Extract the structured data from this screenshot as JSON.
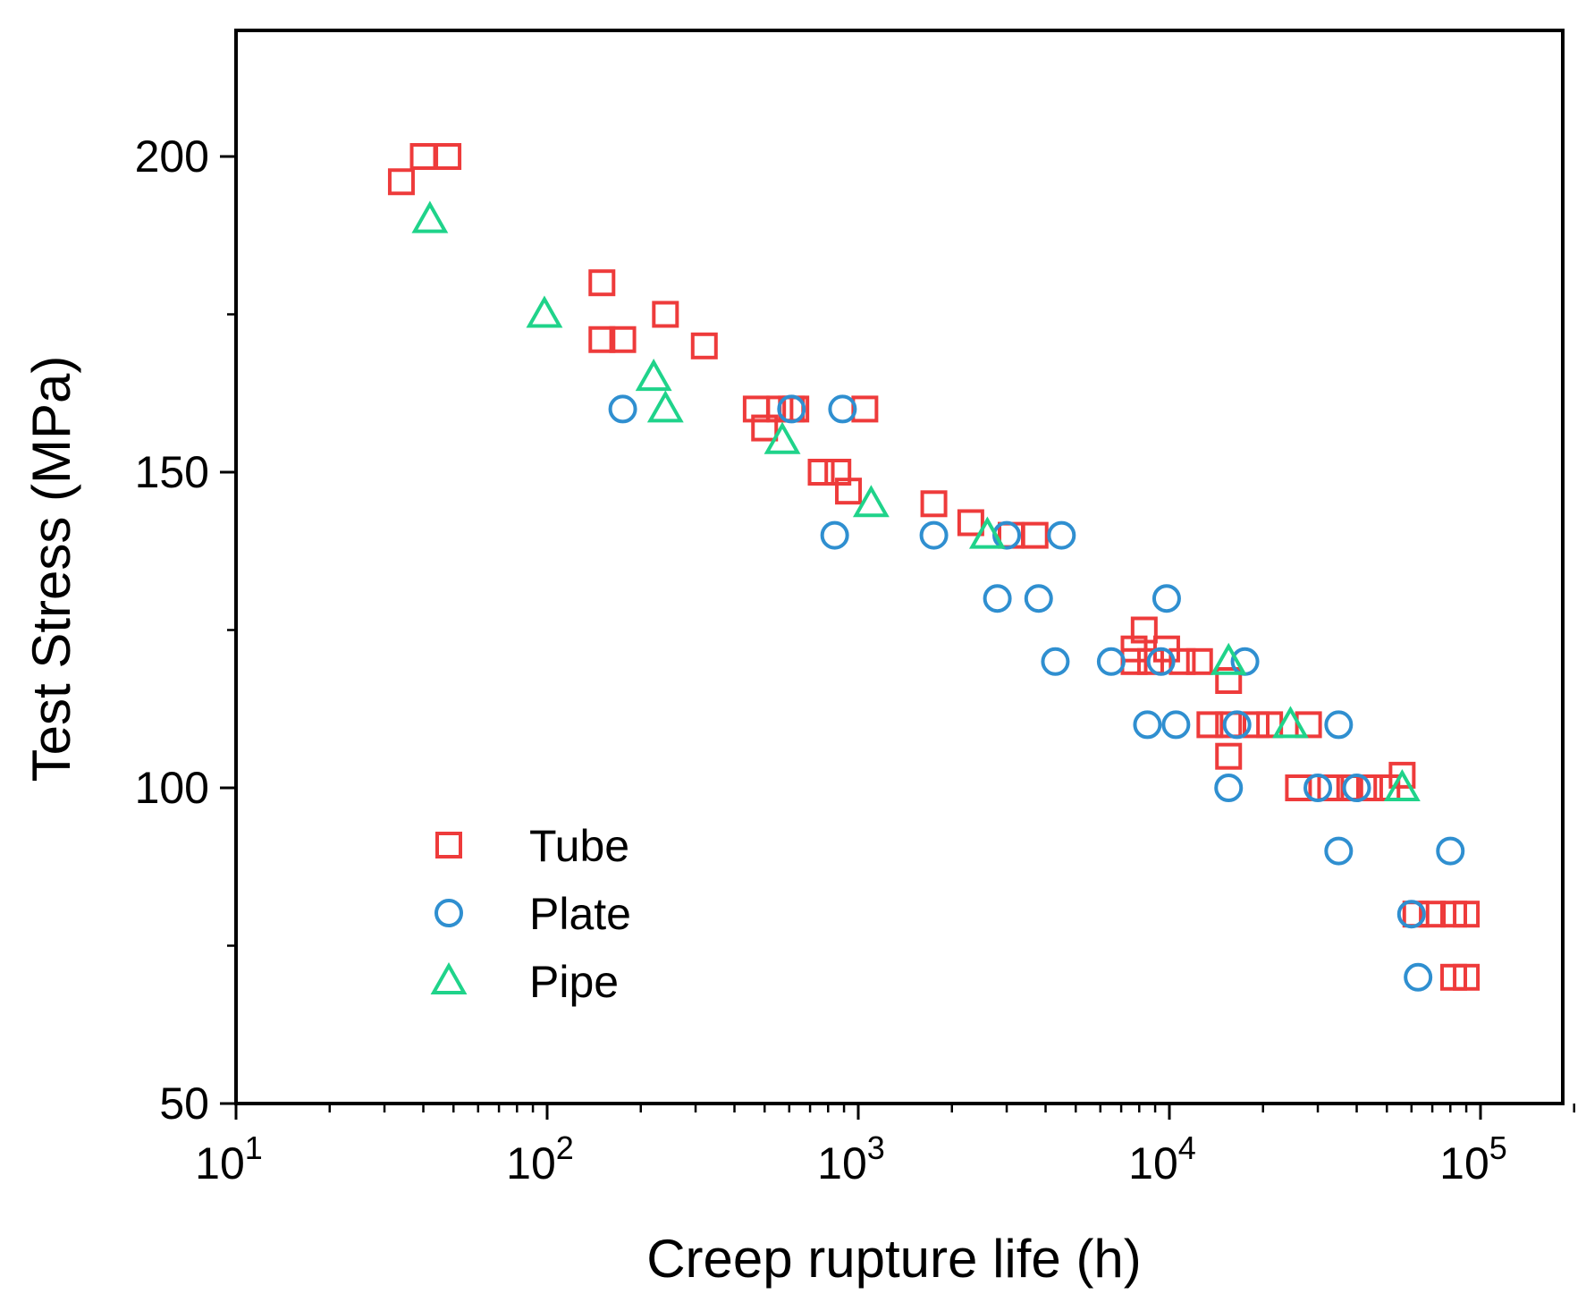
{
  "chart_data": {
    "type": "scatter",
    "title": "",
    "xlabel": "Creep rupture life (h)",
    "ylabel": "Test Stress (MPa)",
    "xscale": "log",
    "xlim": [
      10,
      200000
    ],
    "ylim": [
      50,
      220
    ],
    "grid": false,
    "legend_position": "bottom-left",
    "x_ticks": [
      {
        "base": "10",
        "exp": "1",
        "value": 10
      },
      {
        "base": "10",
        "exp": "2",
        "value": 100
      },
      {
        "base": "10",
        "exp": "3",
        "value": 1000
      },
      {
        "base": "10",
        "exp": "4",
        "value": 10000
      },
      {
        "base": "10",
        "exp": "5",
        "value": 100000
      }
    ],
    "y_ticks": [
      {
        "label": "50",
        "value": 50
      },
      {
        "label": "100",
        "value": 100
      },
      {
        "label": "150",
        "value": 150
      },
      {
        "label": "200",
        "value": 200
      }
    ],
    "series": [
      {
        "name": "Tube",
        "marker": "square",
        "color": "#ee3b3b",
        "points": [
          [
            34,
            196
          ],
          [
            40,
            200
          ],
          [
            48,
            200
          ],
          [
            150,
            180
          ],
          [
            150,
            171
          ],
          [
            175,
            171
          ],
          [
            240,
            175
          ],
          [
            320,
            170
          ],
          [
            470,
            160
          ],
          [
            500,
            157
          ],
          [
            560,
            160
          ],
          [
            610,
            160
          ],
          [
            630,
            160
          ],
          [
            1050,
            160
          ],
          [
            760,
            150
          ],
          [
            860,
            150
          ],
          [
            930,
            147
          ],
          [
            1750,
            145
          ],
          [
            2300,
            142
          ],
          [
            3100,
            140
          ],
          [
            3700,
            140
          ],
          [
            8300,
            125
          ],
          [
            7700,
            122
          ],
          [
            7700,
            120
          ],
          [
            9800,
            122
          ],
          [
            8700,
            120
          ],
          [
            11000,
            120
          ],
          [
            12500,
            120
          ],
          [
            15500,
            117
          ],
          [
            13500,
            110
          ],
          [
            15500,
            110
          ],
          [
            19000,
            110
          ],
          [
            21000,
            110
          ],
          [
            28000,
            110
          ],
          [
            15500,
            105
          ],
          [
            26000,
            100
          ],
          [
            33000,
            100
          ],
          [
            38000,
            100
          ],
          [
            44000,
            100
          ],
          [
            50000,
            100
          ],
          [
            56000,
            102
          ],
          [
            62000,
            80
          ],
          [
            70000,
            80
          ],
          [
            82000,
            80
          ],
          [
            90000,
            80
          ],
          [
            82000,
            70
          ],
          [
            90000,
            70
          ]
        ]
      },
      {
        "name": "Plate",
        "marker": "circle",
        "color": "#2f8fd0",
        "points": [
          [
            175,
            160
          ],
          [
            610,
            160
          ],
          [
            890,
            160
          ],
          [
            840,
            140
          ],
          [
            1750,
            140
          ],
          [
            3000,
            140
          ],
          [
            4500,
            140
          ],
          [
            2800,
            130
          ],
          [
            3800,
            130
          ],
          [
            9800,
            130
          ],
          [
            4300,
            120
          ],
          [
            6500,
            120
          ],
          [
            9400,
            120
          ],
          [
            17500,
            120
          ],
          [
            8500,
            110
          ],
          [
            10500,
            110
          ],
          [
            16500,
            110
          ],
          [
            35000,
            110
          ],
          [
            15500,
            100
          ],
          [
            30000,
            100
          ],
          [
            40000,
            100
          ],
          [
            35000,
            90
          ],
          [
            80000,
            90
          ],
          [
            60000,
            80
          ],
          [
            63000,
            70
          ]
        ]
      },
      {
        "name": "Pipe",
        "marker": "triangle",
        "color": "#1fd38a",
        "points": [
          [
            42,
            190
          ],
          [
            98,
            175
          ],
          [
            220,
            165
          ],
          [
            240,
            160
          ],
          [
            570,
            155
          ],
          [
            1100,
            145
          ],
          [
            2600,
            140
          ],
          [
            15500,
            120
          ],
          [
            24500,
            110
          ],
          [
            56000,
            100
          ]
        ]
      }
    ]
  }
}
